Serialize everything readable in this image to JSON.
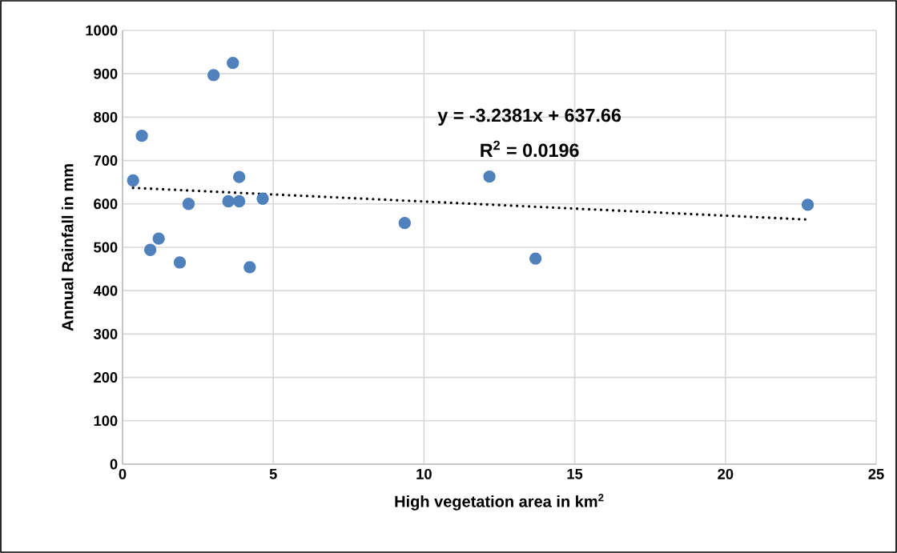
{
  "chart_data": {
    "type": "scatter",
    "xlabel": "High vegetation area in km$^{2}$",
    "ylabel": "Annual Rainfall in mm",
    "annotations": [
      "y = -3.2381x + 637.66",
      "R$^{2}$ = 0.0196"
    ],
    "xlim": [
      0,
      25
    ],
    "ylim": [
      0,
      1000
    ],
    "xticks": [
      0,
      5,
      10,
      15,
      20,
      25
    ],
    "yticks": [
      0,
      100,
      200,
      300,
      400,
      500,
      600,
      700,
      800,
      900,
      1000
    ],
    "grid": true,
    "marker": "circle",
    "series": [
      {
        "color": "#4f81bd",
        "x": [
          0.35,
          0.64,
          0.92,
          1.2,
          1.9,
          2.19,
          3.02,
          3.66,
          3.51,
          3.87,
          3.87,
          4.22,
          4.65,
          9.36,
          12.17,
          13.7,
          22.73
        ],
        "values": [
          654,
          757,
          494,
          520,
          465,
          600,
          897,
          925,
          606,
          606,
          662,
          454,
          612,
          556,
          663,
          474,
          598
        ]
      },
      {
        "type": "line",
        "color": "#000000",
        "line_style": "dotted",
        "marker": "none",
        "x": [
          0.35,
          22.73
        ],
        "values": [
          637,
          564
        ]
      }
    ]
  }
}
